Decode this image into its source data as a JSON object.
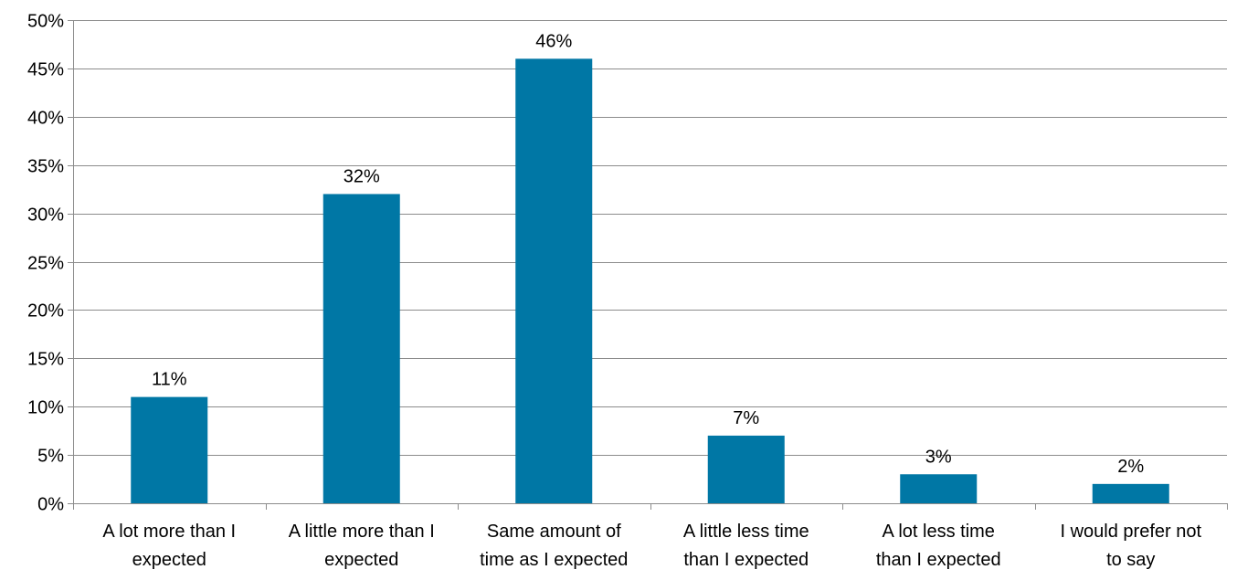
{
  "chart_data": {
    "type": "bar",
    "categories": [
      [
        "A lot more than I",
        "expected"
      ],
      [
        "A little more than I",
        "expected"
      ],
      [
        "Same amount of",
        "time as I expected"
      ],
      [
        "A little less time",
        "than I expected"
      ],
      [
        "A lot less time",
        "than I expected"
      ],
      [
        "I would prefer not",
        "to say"
      ]
    ],
    "values": [
      11,
      32,
      46,
      7,
      3,
      2
    ],
    "data_labels": [
      "11%",
      "32%",
      "46%",
      "7%",
      "3%",
      "2%"
    ],
    "y_ticks": [
      "0%",
      "5%",
      "10%",
      "15%",
      "20%",
      "25%",
      "30%",
      "35%",
      "40%",
      "45%",
      "50%"
    ],
    "ylim": [
      0,
      50
    ],
    "grid": true,
    "legend": "none",
    "title": "",
    "xlabel": "",
    "ylabel": "",
    "colors": {
      "bar": "#0077A5",
      "grid": "#8C8C8C",
      "axis": "#8C8C8C",
      "text": "#000000"
    }
  }
}
